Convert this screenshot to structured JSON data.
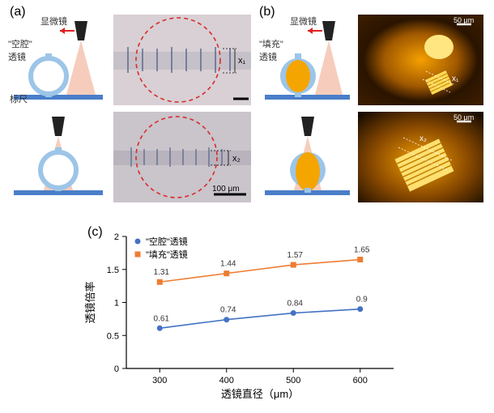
{
  "panelLabels": {
    "a": "(a)",
    "b": "(b)",
    "c": "(c)"
  },
  "labels": {
    "microscope": "显微镜",
    "emptyLens": "\"空腔\"\n透镜",
    "filledLens": "\"填充\"\n透镜",
    "ruler": "标尺",
    "x1": "x₁",
    "x2": "x₂",
    "scale100": "100 μm",
    "scale50": "50 μm"
  },
  "diagram": {
    "scopeFill": "#333333",
    "baselineColor": "#4a7ec9",
    "beamColor": "#f5c4b0",
    "lensOutline": "#9cc5e8",
    "lensFill": "#ffffff",
    "filledLensFill": "#f4a500",
    "arrowColor": "#e02020"
  },
  "photos": {
    "aTop": {
      "bg": "#d8d0d5",
      "circleStroke": "#d92c2c",
      "tickColor": "#4a5a85"
    },
    "aBottom": {
      "bg": "#cac4cb",
      "circleStroke": "#d92c2c",
      "tickColor": "#4a5a85"
    },
    "bTop": {
      "bgInner": "#f5a000",
      "bgOuter": "#3a1c00",
      "spotColor": "#ffe680"
    },
    "bBottom": {
      "bgInner": "#f5a000",
      "bgOuter": "#2a1400",
      "patternColor": "#ffe680"
    }
  },
  "chart": {
    "type": "line-scatter",
    "xLabel": "透镜直径（μm）",
    "yLabel": "透镜倍率",
    "xlim": [
      250,
      650
    ],
    "ylim": [
      0,
      2
    ],
    "xtick_step": 100,
    "ytick_step": 0.5,
    "xticks": [
      300,
      400,
      500,
      600
    ],
    "yticks": [
      0,
      0.5,
      1,
      1.5,
      2
    ],
    "series": [
      {
        "name": "\"空腔\"透镜",
        "color": "#4472c4",
        "marker": "circle",
        "x": [
          300,
          400,
          500,
          600
        ],
        "y": [
          0.61,
          0.74,
          0.84,
          0.9
        ],
        "labels": [
          "0.61",
          "0.74",
          "0.84",
          "0.9"
        ]
      },
      {
        "name": "\"填充\"透镜",
        "color": "#ed7d31",
        "marker": "square",
        "x": [
          300,
          400,
          500,
          600
        ],
        "y": [
          1.31,
          1.44,
          1.57,
          1.65
        ],
        "labels": [
          "1.31",
          "1.44",
          "1.57",
          "1.65"
        ]
      }
    ],
    "fontSize": 12,
    "labelFontSize": 13,
    "tickFontSize": 11,
    "legendFontSize": 11,
    "dataLabelFontSize": 10,
    "axisColor": "#000000",
    "plotBg": "#ffffff"
  }
}
